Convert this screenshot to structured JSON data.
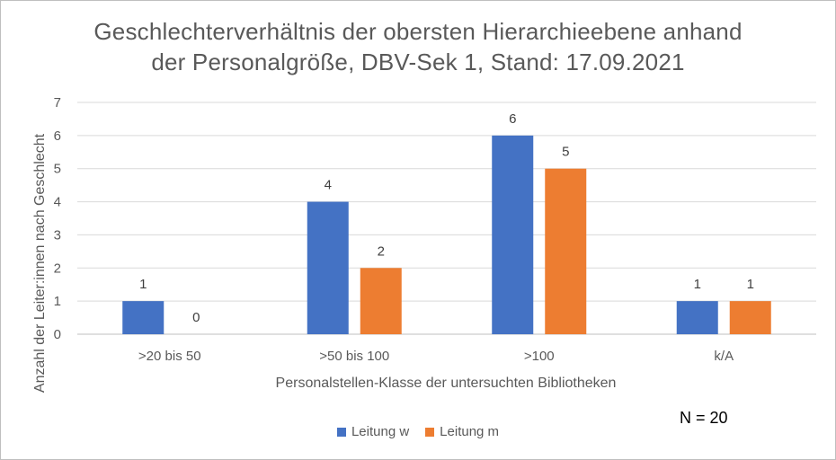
{
  "chart_data": {
    "type": "bar",
    "title_lines": [
      "Geschlechterverhältnis der obersten Hierarchieebene anhand",
      "der Personalgröße, DBV-Sek 1, Stand: 17.09.2021"
    ],
    "xlabel": "Personalstellen-Klasse der untersuchten Bibliotheken",
    "ylabel": "Anzahl der Leiter:innen nach Geschlecht",
    "categories": [
      ">20 bis 50",
      ">50 bis 100",
      ">100",
      "k/A"
    ],
    "series": [
      {
        "name": "Leitung w",
        "color": "#4472C4",
        "values": [
          1,
          4,
          6,
          1
        ]
      },
      {
        "name": "Leitung m",
        "color": "#ED7D31",
        "values": [
          0,
          2,
          5,
          1
        ]
      }
    ],
    "ylim": [
      0,
      7
    ],
    "yticks": [
      0,
      1,
      2,
      3,
      4,
      5,
      6,
      7
    ],
    "grid": true,
    "legend_position": "bottom",
    "annotation": "N = 20"
  }
}
